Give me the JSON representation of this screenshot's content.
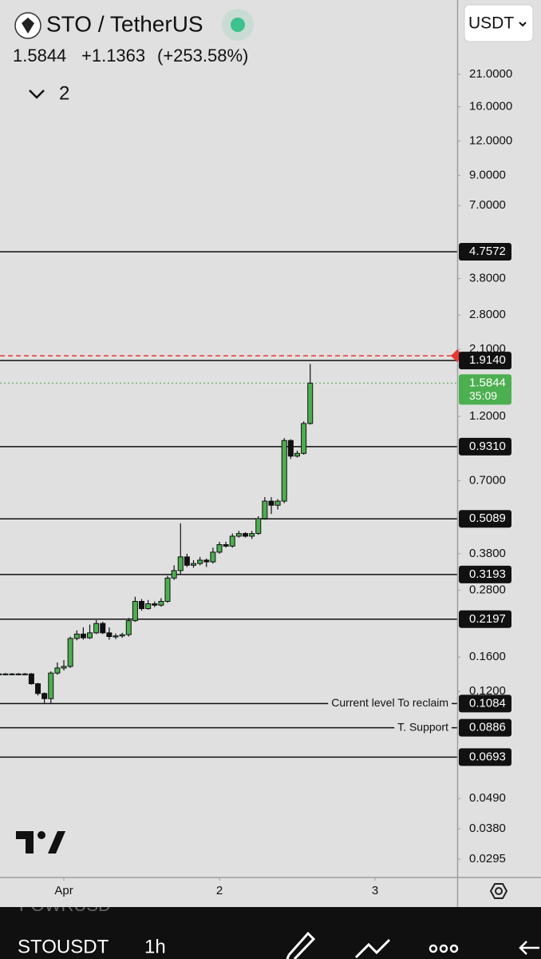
{
  "chart_data": {
    "type": "candlestick",
    "title": "STO / TetherUS",
    "change": "+1.1363",
    "change_pct": "(+253.58%)",
    "indicators": "2",
    "currency": "USDT",
    "log_scale": true,
    "up_color": "#4caf50",
    "down_color": "#111111",
    "x": [
      -10,
      -9,
      -8,
      -7,
      -6,
      -5,
      -4,
      -3,
      -2,
      -1,
      0,
      1,
      2,
      3,
      4,
      5,
      6,
      7,
      8,
      9,
      10,
      11,
      12,
      13,
      14,
      15,
      16,
      17,
      18,
      19,
      20,
      21,
      22,
      23,
      24,
      25,
      26,
      27,
      28,
      29,
      30,
      31,
      32,
      33,
      34,
      35,
      36,
      37,
      38
    ],
    "open": [
      0.139,
      0.139,
      0.139,
      0.139,
      0.139,
      0.139,
      0.128,
      0.118,
      0.113,
      0.14,
      0.146,
      0.148,
      0.187,
      0.194,
      0.188,
      0.196,
      0.212,
      0.196,
      0.19,
      0.191,
      0.193,
      0.217,
      0.255,
      0.24,
      0.25,
      0.247,
      0.255,
      0.31,
      0.33,
      0.37,
      0.345,
      0.35,
      0.36,
      0.355,
      0.385,
      0.41,
      0.405,
      0.44,
      0.45,
      0.44,
      0.45,
      0.51,
      0.59,
      0.57,
      0.59,
      0.98,
      0.86,
      0.88,
      1.13
    ],
    "high": [
      0.14,
      0.14,
      0.14,
      0.14,
      0.14,
      0.14,
      0.129,
      0.119,
      0.142,
      0.153,
      0.156,
      0.19,
      0.2,
      0.205,
      0.21,
      0.218,
      0.215,
      0.205,
      0.195,
      0.196,
      0.222,
      0.265,
      0.26,
      0.258,
      0.255,
      0.262,
      0.316,
      0.345,
      0.49,
      0.38,
      0.36,
      0.37,
      0.365,
      0.4,
      0.42,
      0.42,
      0.45,
      0.46,
      0.455,
      0.46,
      0.52,
      0.61,
      0.61,
      0.6,
      1.0,
      0.99,
      0.9,
      1.15,
      1.86
    ],
    "low": [
      0.138,
      0.138,
      0.138,
      0.138,
      0.138,
      0.127,
      0.116,
      0.109,
      0.109,
      0.138,
      0.143,
      0.146,
      0.184,
      0.185,
      0.186,
      0.194,
      0.194,
      0.185,
      0.186,
      0.188,
      0.19,
      0.215,
      0.236,
      0.238,
      0.243,
      0.244,
      0.252,
      0.305,
      0.32,
      0.34,
      0.338,
      0.345,
      0.34,
      0.35,
      0.38,
      0.4,
      0.4,
      0.435,
      0.435,
      0.43,
      0.445,
      0.505,
      0.53,
      0.55,
      0.58,
      0.84,
      0.85,
      0.87,
      1.12
    ],
    "close": [
      0.139,
      0.139,
      0.139,
      0.139,
      0.139,
      0.128,
      0.118,
      0.113,
      0.14,
      0.146,
      0.148,
      0.187,
      0.194,
      0.188,
      0.196,
      0.212,
      0.196,
      0.19,
      0.191,
      0.193,
      0.217,
      0.255,
      0.24,
      0.25,
      0.247,
      0.255,
      0.31,
      0.33,
      0.37,
      0.345,
      0.35,
      0.36,
      0.355,
      0.385,
      0.41,
      0.405,
      0.44,
      0.45,
      0.44,
      0.45,
      0.51,
      0.59,
      0.57,
      0.59,
      0.98,
      0.86,
      0.88,
      1.13,
      1.5844
    ],
    "xlim": [
      -9.85,
      60.68
    ],
    "xticks": [
      {
        "value": 0,
        "label": "Apr"
      },
      {
        "value": 24,
        "label": "2"
      },
      {
        "value": 48,
        "label": "3"
      }
    ],
    "ylim": [
      0.0253,
      39.1
    ],
    "yticks": [
      {
        "value": 21,
        "label": "21.0000"
      },
      {
        "value": 16,
        "label": "16.0000"
      },
      {
        "value": 12,
        "label": "12.0000"
      },
      {
        "value": 9,
        "label": "9.0000"
      },
      {
        "value": 7,
        "label": "7.0000"
      },
      {
        "value": 3.8,
        "label": "3.8000"
      },
      {
        "value": 2.8,
        "label": "2.8000"
      },
      {
        "value": 2.1,
        "label": "2.1000"
      },
      {
        "value": 1.2,
        "label": "1.2000"
      },
      {
        "value": 0.7,
        "label": "0.7000"
      },
      {
        "value": 0.38,
        "label": "0.3800"
      },
      {
        "value": 0.28,
        "label": "0.2800"
      },
      {
        "value": 0.16,
        "label": "0.1600"
      },
      {
        "value": 0.12,
        "label": "0.1200"
      },
      {
        "value": 0.049,
        "label": "0.0490"
      },
      {
        "value": 0.038,
        "label": "0.0380"
      },
      {
        "value": 0.0295,
        "label": "0.0295"
      }
    ],
    "levels": {
      "values": [
        4.7572,
        1.914,
        0.931,
        0.5089,
        0.3193,
        0.2197,
        0.1084,
        0.0886,
        0.0693
      ],
      "value_labels": [
        "4.7572",
        "1.9140",
        "0.9310",
        "0.5089",
        "0.3193",
        "0.2197",
        "0.1084",
        "0.0886",
        "0.0693"
      ],
      "notes": [
        null,
        null,
        null,
        null,
        null,
        null,
        "Current level To reclaim",
        "T. Support",
        null
      ]
    },
    "last_price": 1.5844,
    "countdown": "35:09",
    "alert_level": 1.99
  },
  "footer": {
    "prev_symbol": "POWRUSD",
    "symbol": "STOUSDT",
    "interval": "1h"
  }
}
